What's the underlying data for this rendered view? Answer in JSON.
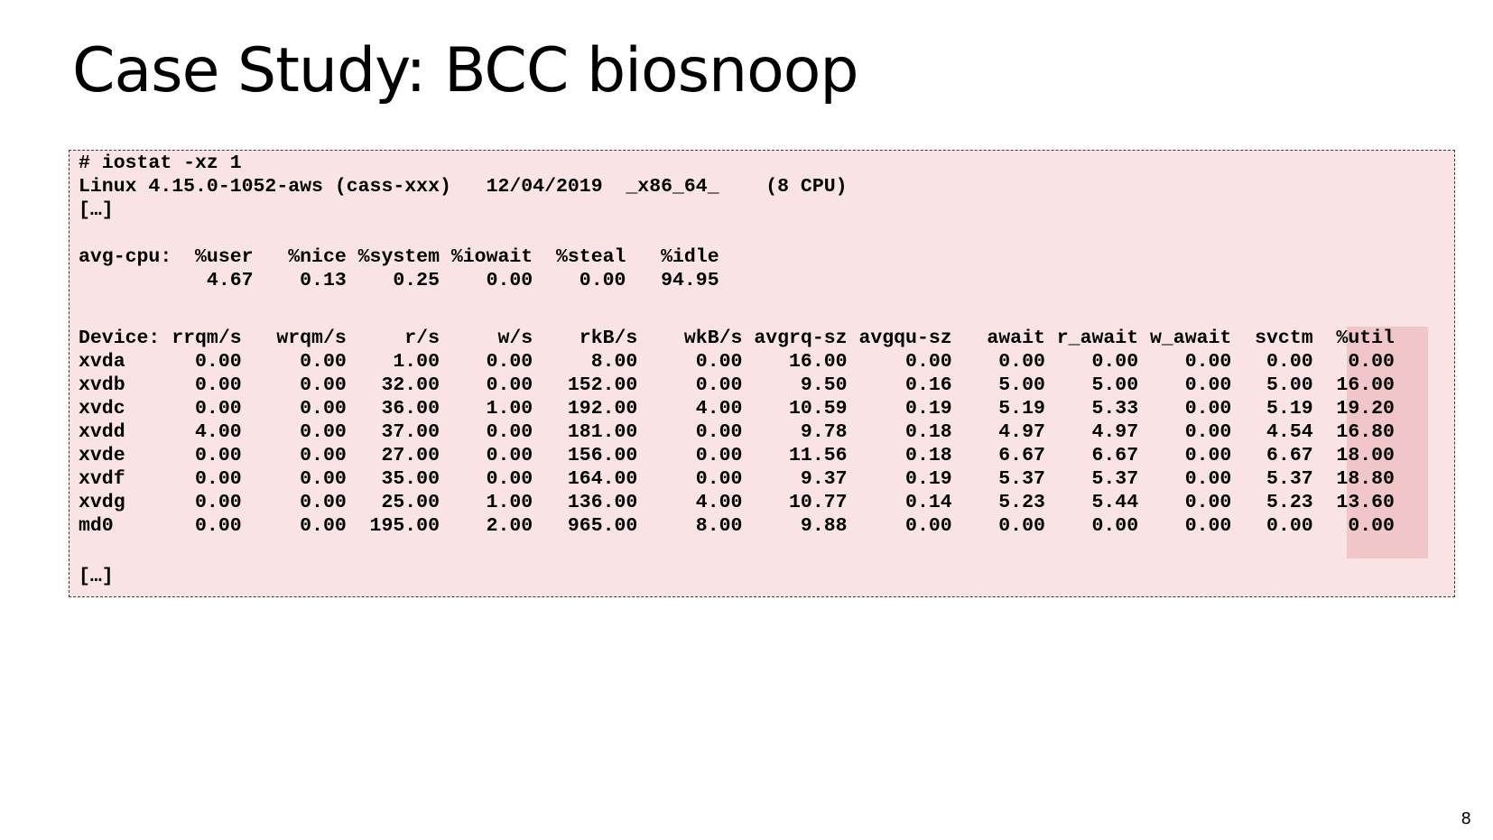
{
  "slide": {
    "title": "Case Study: BCC biosnoop",
    "page_number": "8"
  },
  "terminal": {
    "command": "# iostat -xz 1",
    "system_info": "Linux 4.15.0-1052-aws (cass-xxx)   12/04/2019  _x86_64_    (8 CPU)",
    "ellipsis_top": "[…]",
    "cpu_header": "avg-cpu:  %user   %nice %system %iowait  %steal   %idle",
    "cpu_values": "           4.67    0.13    0.25    0.00    0.00   94.95",
    "device_header": "Device: rrqm/s   wrqm/s     r/s     w/s    rkB/s    wkB/s avgrq-sz avgqu-sz   await r_await w_await  svctm  %util",
    "device_rows": [
      "xvda      0.00     0.00    1.00    0.00     8.00     0.00    16.00     0.00    0.00    0.00    0.00   0.00   0.00",
      "xvdb      0.00     0.00   32.00    0.00   152.00     0.00     9.50     0.16    5.00    5.00    0.00   5.00  16.00",
      "xvdc      0.00     0.00   36.00    1.00   192.00     4.00    10.59     0.19    5.19    5.33    0.00   5.19  19.20",
      "xvdd      4.00     0.00   37.00    0.00   181.00     0.00     9.78     0.18    4.97    4.97    0.00   4.54  16.80",
      "xvde      0.00     0.00   27.00    0.00   156.00     0.00    11.56     0.18    6.67    6.67    0.00   6.67  18.00",
      "xvdf      0.00     0.00   35.00    0.00   164.00     0.00     9.37     0.19    5.37    5.37    0.00   5.37  18.80",
      "xvdg      0.00     0.00   25.00    1.00   136.00     4.00    10.77     0.14    5.23    5.44    0.00   5.23  13.60",
      "md0       0.00     0.00  195.00    2.00   965.00     8.00     9.88     0.00    0.00    0.00    0.00   0.00   0.00"
    ],
    "ellipsis_bottom": "[…]"
  },
  "colors": {
    "box_background": "#f9e3e4",
    "util_highlight": "#f0c6c8"
  }
}
